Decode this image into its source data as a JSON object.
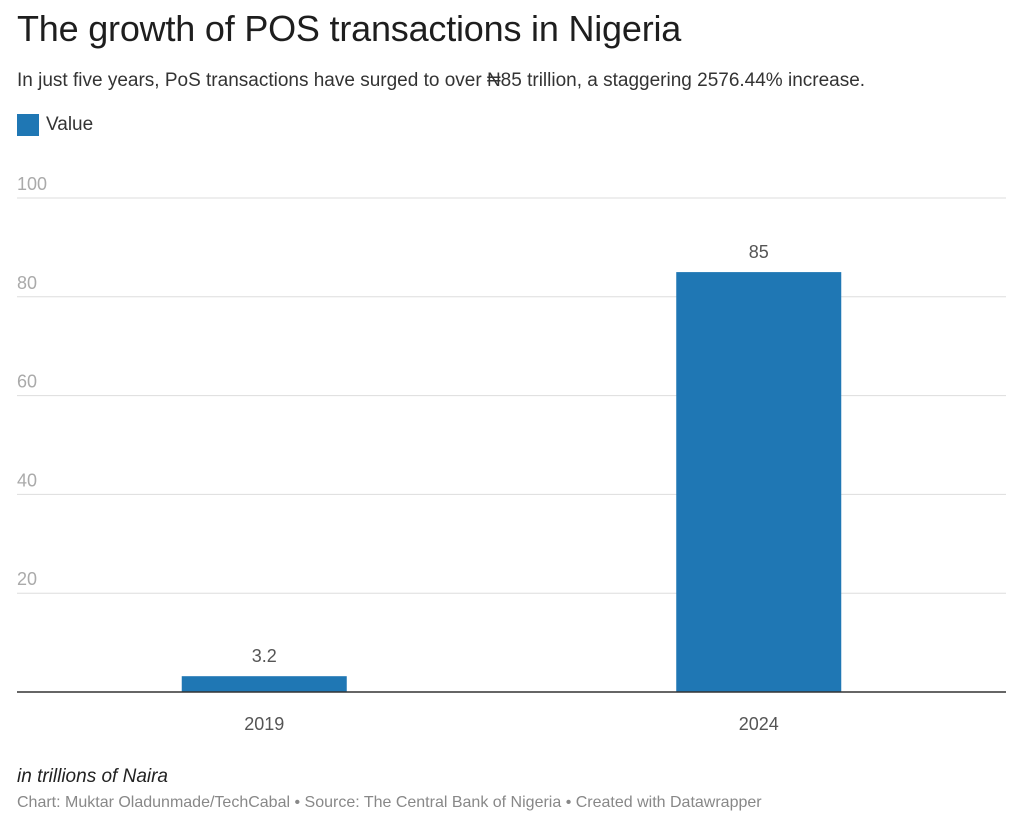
{
  "chart_data": {
    "type": "bar",
    "title": "The growth of POS transactions in Nigeria",
    "subtitle": "In just five years, PoS transactions have surged to over ₦85 trillion, a staggering 2576.44% increase.",
    "categories": [
      "2019",
      "2024"
    ],
    "series": [
      {
        "name": "Value",
        "values": [
          3.2,
          85
        ],
        "labels": [
          "3.2",
          "85"
        ],
        "color": "#1f77b4"
      }
    ],
    "yticks": [
      20,
      40,
      60,
      80,
      100
    ],
    "ylim": [
      0,
      100
    ],
    "grid": true,
    "legend_position": "top-left",
    "xlabel": "",
    "ylabel": "",
    "notes": "in trillions of Naira",
    "footer": "Chart: Muktar Oladunmade/TechCabal • Source: The Central Bank of Nigeria • Created with Datawrapper"
  },
  "colors": {
    "bar": "#1f77b4",
    "grid": "#dddddd",
    "baseline": "#333333",
    "tick_label": "#aaaaaa",
    "category_label": "#555555",
    "value_label": "#555555"
  }
}
